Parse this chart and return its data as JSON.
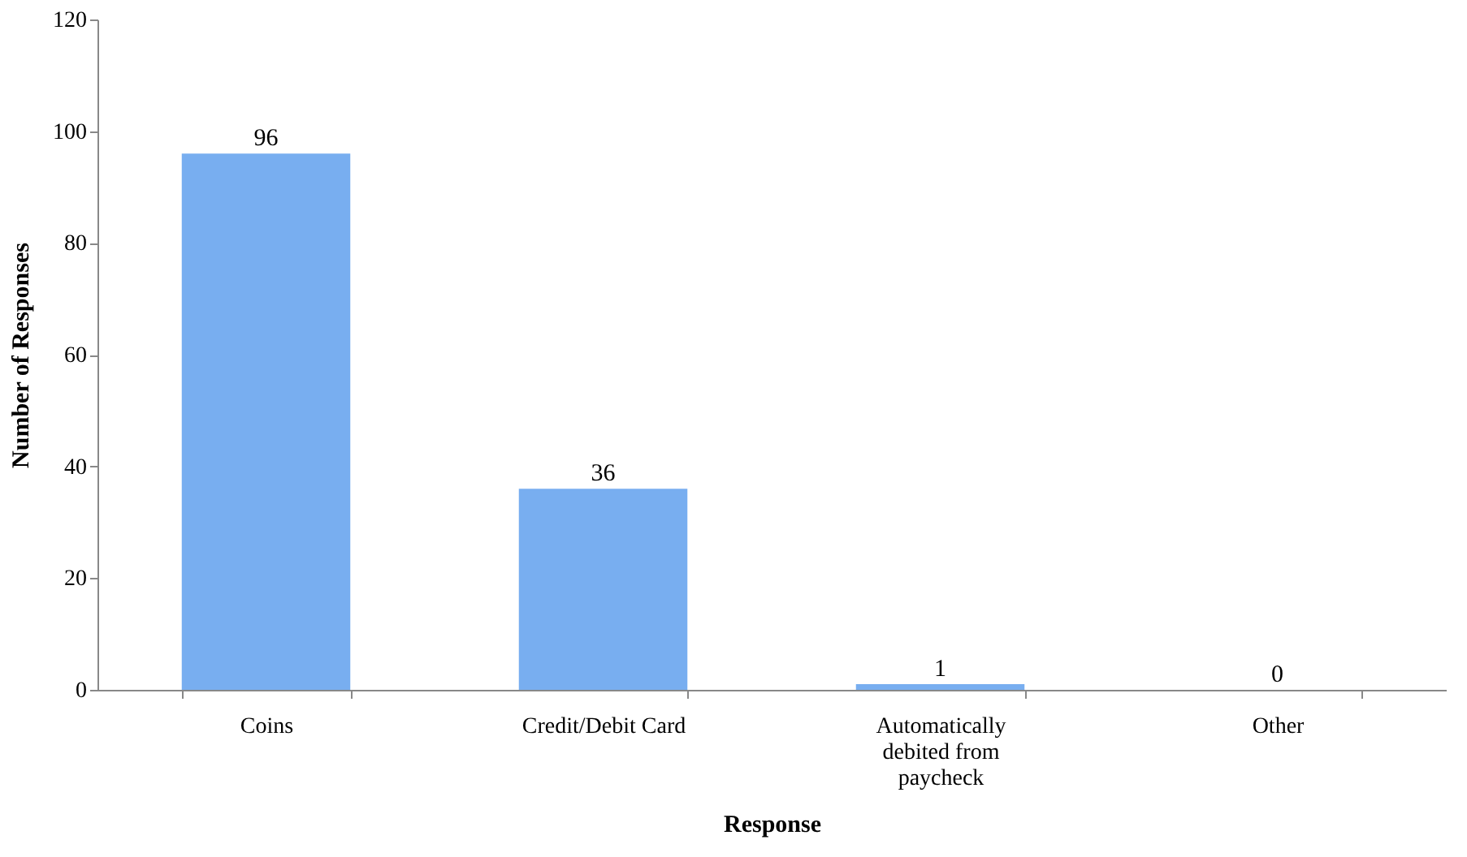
{
  "chart_data": {
    "type": "bar",
    "categories": [
      "Coins",
      "Credit/Debit Card",
      "Automatically debited from paycheck",
      "Other"
    ],
    "values": [
      96,
      36,
      1,
      0
    ],
    "color": "#78aef0",
    "xlabel": "Response",
    "ylabel": "Number of Responses",
    "ylim": [
      0,
      120
    ],
    "yticks": [
      0,
      20,
      40,
      60,
      80,
      100,
      120
    ],
    "grid": false,
    "data_labels": true
  }
}
